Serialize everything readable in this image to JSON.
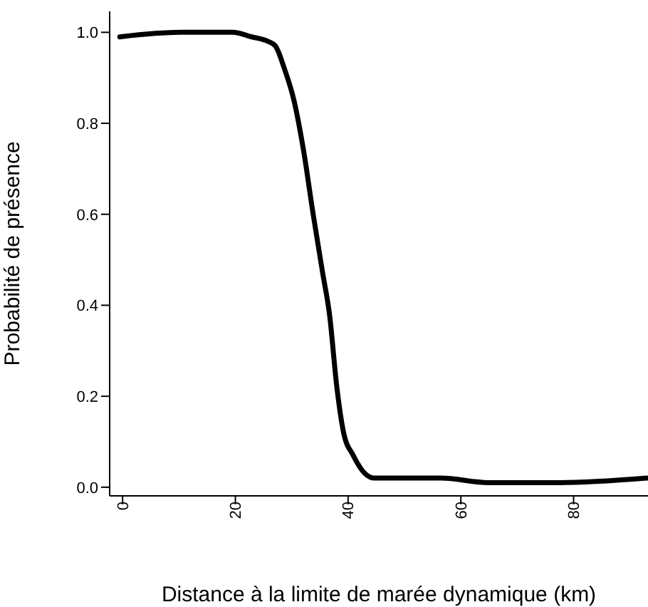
{
  "chart_data": {
    "type": "line",
    "xlabel": "Distance à la limite de marée dynamique (km)",
    "ylabel": "Probabilité de présence",
    "x": [
      -0.5,
      10.3,
      14.5,
      19.5,
      22.9,
      25.8,
      27.1,
      28.7,
      30.4,
      32.1,
      33.8,
      35.5,
      36.7,
      38.0,
      39.2,
      40.9,
      43.0,
      44.7,
      50.6,
      56.5,
      64.9,
      77.5,
      93.0
    ],
    "series": [
      {
        "color": "#000000",
        "values": [
          0.99,
          1.0,
          1.0,
          1.0,
          0.99,
          0.98,
          0.97,
          0.92,
          0.85,
          0.74,
          0.6,
          0.47,
          0.38,
          0.22,
          0.12,
          0.07,
          0.03,
          0.02,
          0.02,
          0.02,
          0.01,
          0.01,
          0.02
        ]
      }
    ],
    "xlim": [
      -2.3,
      93.2
    ],
    "xticks": [
      0,
      20,
      40,
      60,
      80
    ],
    "ylim": [
      -0.019,
      1.046
    ],
    "yticks": [
      {
        "value": 0,
        "label": "0.0"
      },
      {
        "value": 0.2,
        "label": "0.2"
      },
      {
        "value": 0.4,
        "label": "0.4"
      },
      {
        "value": 0.6,
        "label": "0.6"
      },
      {
        "value": 0.8,
        "label": "0.8"
      },
      {
        "value": 1,
        "label": "1.0"
      }
    ],
    "grid": false,
    "legend": false,
    "marker": "none",
    "line_style": "solid"
  }
}
